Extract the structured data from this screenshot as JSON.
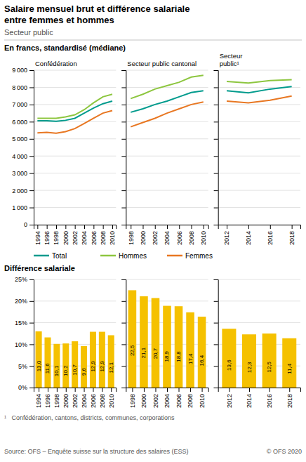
{
  "title": [
    "Salaire mensuel brut et différence salariale",
    "entre femmes et hommes"
  ],
  "subtitle": "Secteur public",
  "section_titles": [
    "En francs, standardisé (médiane)",
    "Différence salariale"
  ],
  "footnote": "¹   Confédération, cantons, districts, communes, corporations",
  "source": "Source: OFS – Enquête suisse sur la structure des salaires (ESS)",
  "copyright": "© OFS 2020",
  "chart_data": [
    {
      "type": "line",
      "title": "Confédération",
      "x": [
        1994,
        1996,
        1998,
        2000,
        2002,
        2004,
        2006,
        2008,
        2010
      ],
      "series": [
        {
          "name": "Total",
          "color": "#009B8D",
          "values": [
            6050,
            6050,
            6020,
            6080,
            6200,
            6500,
            6800,
            7050,
            7200
          ]
        },
        {
          "name": "Hommes",
          "color": "#8DC63F",
          "values": [
            6200,
            6200,
            6200,
            6280,
            6400,
            6700,
            7100,
            7450,
            7600
          ]
        },
        {
          "name": "Femmes",
          "color": "#E87722",
          "values": [
            5350,
            5380,
            5330,
            5420,
            5600,
            5900,
            6200,
            6500,
            6650
          ]
        }
      ],
      "xlim": [
        1993.2,
        2010.8
      ],
      "xticks": [
        1994,
        1996,
        1998,
        2000,
        2002,
        2004,
        2006,
        2008,
        2010
      ],
      "ylim": [
        0,
        9000
      ],
      "yticks": [
        0,
        {
          "value": 1000,
          "label": "1 000"
        },
        {
          "value": 2000,
          "label": "2 000"
        },
        {
          "value": 3000,
          "label": "3 000"
        },
        {
          "value": 4000,
          "label": "4 000"
        },
        {
          "value": 5000,
          "label": "5 000"
        },
        {
          "value": 6000,
          "label": "6 000"
        },
        {
          "value": 7000,
          "label": "7 000"
        },
        {
          "value": 8000,
          "label": "8 000"
        },
        {
          "value": 9000,
          "label": "9 000"
        }
      ],
      "grid": true,
      "legend": "bottom"
    },
    {
      "type": "line",
      "title": "Secteur public cantonal",
      "x": [
        1998,
        2000,
        2002,
        2004,
        2006,
        2008,
        2010
      ],
      "series": [
        {
          "name": "Total",
          "color": "#009B8D",
          "values": [
            6550,
            6750,
            7000,
            7200,
            7450,
            7700,
            7800
          ]
        },
        {
          "name": "Hommes",
          "color": "#8DC63F",
          "values": [
            7350,
            7600,
            7900,
            8100,
            8300,
            8600,
            8700
          ]
        },
        {
          "name": "Femmes",
          "color": "#E87722",
          "values": [
            5700,
            5950,
            6200,
            6500,
            6750,
            7000,
            7150
          ]
        }
      ],
      "xlim": [
        1997.2,
        2010.8
      ],
      "xticks": [
        1998,
        2000,
        2002,
        2004,
        2006,
        2008,
        2010
      ],
      "ylim": [
        0,
        9000
      ],
      "yticks": [
        0,
        1000,
        2000,
        3000,
        4000,
        5000,
        6000,
        7000,
        8000,
        9000
      ],
      "grid": true,
      "tick_labels": "x"
    },
    {
      "type": "line",
      "title": "Secteur\npublic¹",
      "x": [
        2012,
        2014,
        2016,
        2018
      ],
      "series": [
        {
          "name": "Total",
          "color": "#009B8D",
          "values": [
            7800,
            7680,
            7900,
            8050
          ]
        },
        {
          "name": "Hommes",
          "color": "#8DC63F",
          "values": [
            8350,
            8250,
            8400,
            8450
          ]
        },
        {
          "name": "Femmes",
          "color": "#E87722",
          "values": [
            7200,
            7100,
            7250,
            7500
          ]
        }
      ],
      "xlim": [
        2011.2,
        2018.8
      ],
      "xticks": [
        2012,
        2014,
        2016,
        2018
      ],
      "ylim": [
        0,
        9000
      ],
      "yticks": [
        0,
        1000,
        2000,
        3000,
        4000,
        5000,
        6000,
        7000,
        8000,
        9000
      ],
      "grid": true,
      "tick_labels": "x"
    },
    {
      "type": "bar",
      "x": [
        1994,
        1996,
        1998,
        2000,
        2002,
        2004,
        2006,
        2008,
        2010
      ],
      "values": [
        13.0,
        11.6,
        10.1,
        10.2,
        10.7,
        9.6,
        12.9,
        12.9,
        12.1
      ],
      "value_labels": [
        "13,0",
        "11,6",
        "10,1",
        "10,2",
        "10,7",
        "9,6",
        "12,9",
        "12,9",
        "12,1"
      ],
      "color": "#F5C100",
      "xlim": [
        1992.9,
        2011.1
      ],
      "xticks": [
        1994,
        1996,
        1998,
        2000,
        2002,
        2004,
        2006,
        2008,
        2010
      ],
      "ylim": [
        0,
        25
      ],
      "yticks": [
        {
          "value": 0,
          "label": "0%"
        },
        {
          "value": 5,
          "label": "5%"
        },
        {
          "value": 10,
          "label": "10%"
        },
        {
          "value": 15,
          "label": "15%"
        },
        {
          "value": 20,
          "label": "20%"
        },
        {
          "value": 25,
          "label": "25%"
        }
      ],
      "grid": true,
      "data_labels": true
    },
    {
      "type": "bar",
      "x": [
        1998,
        2000,
        2002,
        2004,
        2006,
        2008,
        2010
      ],
      "values": [
        22.5,
        21.1,
        20.7,
        18.9,
        18.8,
        17.4,
        16.4
      ],
      "value_labels": [
        "22,5",
        "21,1",
        "20,7",
        "18,9",
        "18,8",
        "17,4",
        "16,4"
      ],
      "color": "#F5C100",
      "xlim": [
        1996.9,
        2011.1
      ],
      "xticks": [
        1998,
        2000,
        2002,
        2004,
        2006,
        2008,
        2010
      ],
      "ylim": [
        0,
        25
      ],
      "yticks": [
        0,
        5,
        10,
        15,
        20,
        25
      ],
      "grid": true,
      "data_labels": true,
      "tick_labels": "x"
    },
    {
      "type": "bar",
      "x": [
        2012,
        2014,
        2016,
        2018
      ],
      "values": [
        13.6,
        12.3,
        12.5,
        11.4
      ],
      "value_labels": [
        "13,6",
        "12,3",
        "12,5",
        "11,4"
      ],
      "color": "#F5C100",
      "xlim": [
        2010.9,
        2019.1
      ],
      "xticks": [
        2012,
        2014,
        2016,
        2018
      ],
      "ylim": [
        0,
        25
      ],
      "yticks": [
        0,
        5,
        10,
        15,
        20,
        25
      ],
      "grid": true,
      "data_labels": true,
      "tick_labels": "x"
    }
  ]
}
